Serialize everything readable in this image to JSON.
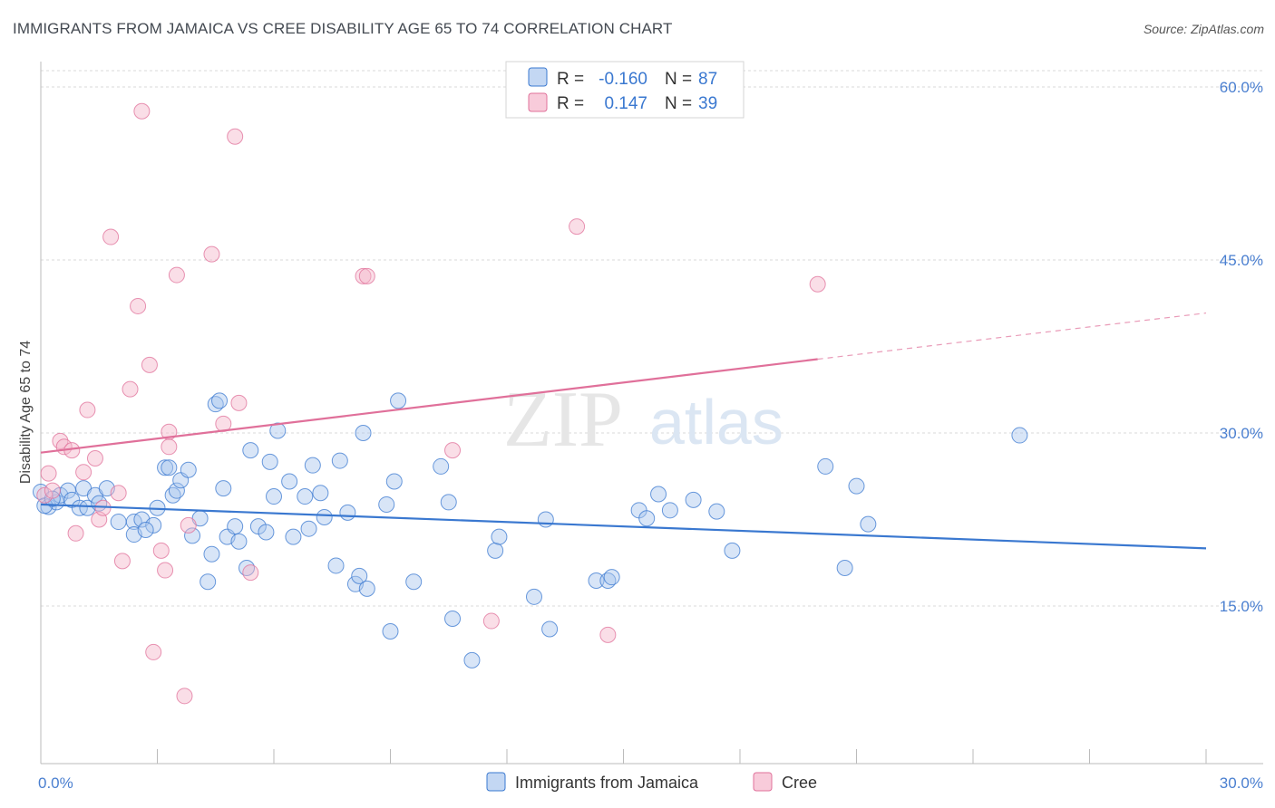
{
  "title": "IMMIGRANTS FROM JAMAICA VS CREE DISABILITY AGE 65 TO 74 CORRELATION CHART",
  "source": "Source: ZipAtlas.com",
  "watermark": {
    "zip": "ZIP",
    "atlas": "atlas"
  },
  "colors": {
    "blue": "#3a78d0",
    "blue_fill": "#a9c6ee",
    "pink": "#e0709a",
    "pink_fill": "#f5b5ca",
    "grid": "#d9d9d9",
    "tick_text": "#4a7fd0"
  },
  "legend": {
    "rows": [
      {
        "r_label": "R =",
        "r_value": "-0.160",
        "n_label": "N =",
        "n_value": "87",
        "series": "blue"
      },
      {
        "r_label": "R =",
        "r_value": "0.147",
        "n_label": "N =",
        "n_value": "39",
        "series": "pink"
      }
    ]
  },
  "chart_data": {
    "type": "scatter",
    "title": "IMMIGRANTS FROM JAMAICA VS CREE DISABILITY AGE 65 TO 74 CORRELATION CHART",
    "xlabel": "",
    "ylabel": "Disability Age 65 to 74",
    "xlim": [
      0,
      30
    ],
    "ylim": [
      0,
      63
    ],
    "x_tick_labels": [
      {
        "value": 0,
        "label": "0.0%"
      },
      {
        "value": 30,
        "label": "30.0%"
      }
    ],
    "y_tick_labels": [
      {
        "value": 15,
        "label": "15.0%"
      },
      {
        "value": 30,
        "label": "30.0%"
      },
      {
        "value": 45,
        "label": "45.0%"
      },
      {
        "value": 60,
        "label": "60.0%"
      }
    ],
    "legend_placement": "top-center",
    "grid": true,
    "series": [
      {
        "name": "Immigrants from Jamaica",
        "color": "#3a78d0",
        "trend": {
          "x": [
            0,
            30
          ],
          "y": [
            23.8,
            20.0
          ],
          "dashed_from": null
        },
        "points": [
          [
            0.2,
            23.6
          ],
          [
            0.4,
            24.0
          ],
          [
            0.5,
            24.6
          ],
          [
            0.7,
            25.0
          ],
          [
            0.8,
            24.2
          ],
          [
            1.0,
            23.5
          ],
          [
            1.1,
            25.2
          ],
          [
            1.2,
            23.5
          ],
          [
            1.4,
            24.6
          ],
          [
            1.5,
            23.9
          ],
          [
            1.7,
            25.2
          ],
          [
            2.0,
            22.3
          ],
          [
            2.4,
            22.3
          ],
          [
            2.4,
            21.2
          ],
          [
            2.6,
            22.5
          ],
          [
            2.9,
            22.0
          ],
          [
            3.0,
            23.5
          ],
          [
            3.2,
            27.0
          ],
          [
            3.4,
            24.6
          ],
          [
            3.5,
            25.0
          ],
          [
            3.6,
            25.9
          ],
          [
            3.8,
            26.8
          ],
          [
            3.9,
            21.1
          ],
          [
            4.1,
            22.6
          ],
          [
            4.3,
            17.1
          ],
          [
            4.4,
            19.5
          ],
          [
            4.5,
            32.5
          ],
          [
            4.6,
            32.8
          ],
          [
            4.7,
            25.2
          ],
          [
            4.8,
            21.0
          ],
          [
            5.0,
            21.9
          ],
          [
            5.1,
            20.6
          ],
          [
            5.3,
            18.3
          ],
          [
            5.4,
            28.5
          ],
          [
            5.6,
            21.9
          ],
          [
            5.8,
            21.4
          ],
          [
            5.9,
            27.5
          ],
          [
            6.0,
            24.5
          ],
          [
            6.1,
            30.2
          ],
          [
            6.4,
            25.8
          ],
          [
            6.5,
            21.0
          ],
          [
            6.8,
            24.5
          ],
          [
            7.0,
            27.2
          ],
          [
            7.2,
            24.8
          ],
          [
            7.3,
            22.7
          ],
          [
            7.6,
            18.5
          ],
          [
            7.7,
            27.6
          ],
          [
            7.9,
            23.1
          ],
          [
            8.1,
            16.9
          ],
          [
            8.2,
            17.6
          ],
          [
            8.3,
            30.0
          ],
          [
            8.4,
            16.5
          ],
          [
            8.9,
            23.8
          ],
          [
            9.0,
            12.8
          ],
          [
            9.1,
            25.8
          ],
          [
            9.2,
            32.8
          ],
          [
            9.6,
            17.1
          ],
          [
            10.3,
            27.1
          ],
          [
            10.5,
            24.0
          ],
          [
            10.6,
            13.9
          ],
          [
            11.1,
            10.3
          ],
          [
            11.7,
            19.8
          ],
          [
            11.8,
            21.0
          ],
          [
            12.7,
            15.8
          ],
          [
            13.0,
            22.5
          ],
          [
            13.1,
            13.0
          ],
          [
            14.3,
            17.2
          ],
          [
            14.6,
            17.2
          ],
          [
            14.7,
            17.5
          ],
          [
            15.4,
            23.3
          ],
          [
            15.6,
            22.6
          ],
          [
            15.9,
            24.7
          ],
          [
            16.2,
            23.3
          ],
          [
            16.8,
            24.2
          ],
          [
            17.4,
            23.2
          ],
          [
            17.8,
            19.8
          ],
          [
            20.2,
            27.1
          ],
          [
            20.7,
            18.3
          ],
          [
            21.0,
            25.4
          ],
          [
            21.3,
            22.1
          ],
          [
            25.2,
            29.8
          ],
          [
            0.0,
            24.9
          ],
          [
            0.1,
            23.7
          ],
          [
            0.3,
            24.3
          ],
          [
            2.7,
            21.6
          ],
          [
            6.9,
            21.7
          ],
          [
            3.3,
            27.0
          ]
        ]
      },
      {
        "name": "Cree",
        "color": "#e0709a",
        "trend": {
          "x": [
            0,
            20
          ],
          "y": [
            28.3,
            36.4
          ],
          "dashed_to": [
            30,
            40.4
          ]
        },
        "points": [
          [
            0.1,
            24.6
          ],
          [
            0.2,
            26.5
          ],
          [
            0.3,
            25.0
          ],
          [
            0.5,
            29.3
          ],
          [
            0.6,
            28.8
          ],
          [
            0.8,
            28.5
          ],
          [
            0.9,
            21.3
          ],
          [
            1.1,
            26.6
          ],
          [
            1.2,
            32.0
          ],
          [
            1.4,
            27.8
          ],
          [
            1.5,
            22.5
          ],
          [
            1.6,
            23.5
          ],
          [
            1.8,
            47.0
          ],
          [
            2.0,
            24.8
          ],
          [
            2.1,
            18.9
          ],
          [
            2.3,
            33.8
          ],
          [
            2.5,
            41.0
          ],
          [
            2.6,
            57.9
          ],
          [
            2.8,
            35.9
          ],
          [
            2.9,
            11.0
          ],
          [
            3.1,
            19.8
          ],
          [
            3.2,
            18.1
          ],
          [
            3.3,
            30.1
          ],
          [
            3.3,
            28.8
          ],
          [
            3.5,
            43.7
          ],
          [
            3.7,
            7.2
          ],
          [
            3.8,
            22.0
          ],
          [
            4.4,
            45.5
          ],
          [
            5.0,
            55.7
          ],
          [
            5.1,
            32.6
          ],
          [
            4.7,
            30.8
          ],
          [
            5.4,
            17.9
          ],
          [
            8.3,
            43.6
          ],
          [
            8.4,
            43.6
          ],
          [
            10.6,
            28.5
          ],
          [
            11.6,
            13.7
          ],
          [
            13.8,
            47.9
          ],
          [
            14.6,
            12.5
          ],
          [
            20.0,
            42.9
          ]
        ]
      }
    ]
  },
  "bottom_legend": [
    {
      "label": "Immigrants from Jamaica",
      "series": "blue"
    },
    {
      "label": "Cree",
      "series": "pink"
    }
  ]
}
